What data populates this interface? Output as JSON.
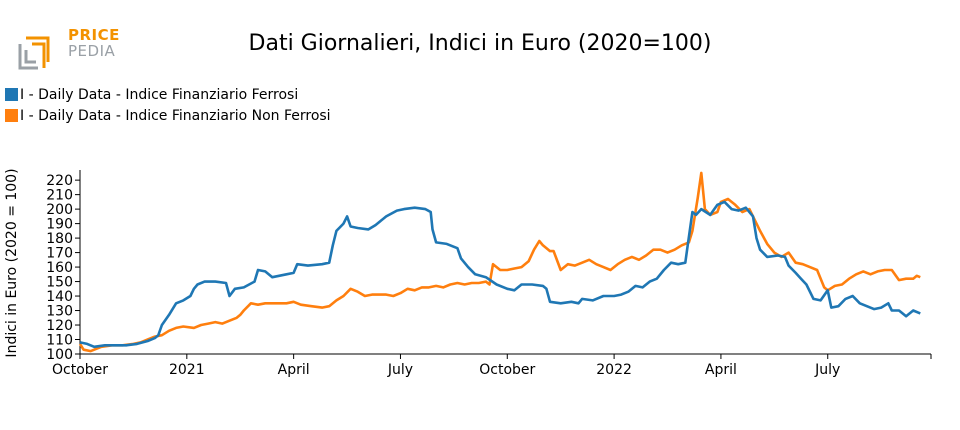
{
  "logo": {
    "line1": "PRICE",
    "line2": "PEDIA",
    "color_orange": "#f39200",
    "color_gray": "#9aa0a6"
  },
  "chart_data": {
    "type": "line",
    "title": "Dati Giornalieri, Indici in Euro (2020=100)",
    "xlabel": "",
    "ylabel": "Indici in Euro (2020 = 100)",
    "ylim": [
      100,
      227
    ],
    "yticks": [
      100,
      110,
      120,
      130,
      140,
      150,
      160,
      170,
      180,
      190,
      200,
      210,
      220
    ],
    "x_range_months": [
      0,
      23.9
    ],
    "xticks": [
      {
        "pos": 0,
        "label": "October"
      },
      {
        "pos": 3,
        "label": "2021"
      },
      {
        "pos": 6,
        "label": "April"
      },
      {
        "pos": 9,
        "label": "July"
      },
      {
        "pos": 12,
        "label": "October"
      },
      {
        "pos": 15,
        "label": "2022"
      },
      {
        "pos": 18,
        "label": "April"
      },
      {
        "pos": 21,
        "label": "July"
      }
    ],
    "grid": false,
    "legend_position": "top-left",
    "series": [
      {
        "name": "I - Daily Data - Indice Finanziario Ferrosi",
        "color": "#1f77b4",
        "points": [
          [
            0,
            108
          ],
          [
            0.2,
            107
          ],
          [
            0.4,
            105
          ],
          [
            0.7,
            106
          ],
          [
            1.0,
            106
          ],
          [
            1.3,
            106
          ],
          [
            1.6,
            107
          ],
          [
            1.9,
            109
          ],
          [
            2.1,
            111
          ],
          [
            2.2,
            113
          ],
          [
            2.3,
            120
          ],
          [
            2.5,
            127
          ],
          [
            2.7,
            135
          ],
          [
            2.9,
            137
          ],
          [
            3.1,
            140
          ],
          [
            3.2,
            145
          ],
          [
            3.3,
            148
          ],
          [
            3.5,
            150
          ],
          [
            3.8,
            150
          ],
          [
            4.1,
            149
          ],
          [
            4.2,
            140
          ],
          [
            4.35,
            145
          ],
          [
            4.6,
            146
          ],
          [
            4.9,
            150
          ],
          [
            5.0,
            158
          ],
          [
            5.2,
            157
          ],
          [
            5.4,
            153
          ],
          [
            5.8,
            155
          ],
          [
            6.0,
            156
          ],
          [
            6.1,
            162
          ],
          [
            6.4,
            161
          ],
          [
            6.8,
            162
          ],
          [
            7.0,
            163
          ],
          [
            7.1,
            175
          ],
          [
            7.2,
            185
          ],
          [
            7.4,
            190
          ],
          [
            7.5,
            195
          ],
          [
            7.6,
            188
          ],
          [
            7.8,
            187
          ],
          [
            8.1,
            186
          ],
          [
            8.3,
            189
          ],
          [
            8.6,
            195
          ],
          [
            8.9,
            199
          ],
          [
            9.1,
            200
          ],
          [
            9.4,
            201
          ],
          [
            9.7,
            200
          ],
          [
            9.85,
            198
          ],
          [
            9.9,
            186
          ],
          [
            10.0,
            177
          ],
          [
            10.3,
            176
          ],
          [
            10.6,
            173
          ],
          [
            10.7,
            166
          ],
          [
            10.9,
            160
          ],
          [
            11.1,
            155
          ],
          [
            11.4,
            153
          ],
          [
            11.7,
            148
          ],
          [
            12.0,
            145
          ],
          [
            12.2,
            144
          ],
          [
            12.4,
            148
          ],
          [
            12.7,
            148
          ],
          [
            13.0,
            147
          ],
          [
            13.1,
            145
          ],
          [
            13.2,
            136
          ],
          [
            13.5,
            135
          ],
          [
            13.8,
            136
          ],
          [
            14.0,
            135
          ],
          [
            14.1,
            138
          ],
          [
            14.4,
            137
          ],
          [
            14.7,
            140
          ],
          [
            15.0,
            140
          ],
          [
            15.2,
            141
          ],
          [
            15.4,
            143
          ],
          [
            15.6,
            147
          ],
          [
            15.8,
            146
          ],
          [
            16.0,
            150
          ],
          [
            16.2,
            152
          ],
          [
            16.4,
            158
          ],
          [
            16.6,
            163
          ],
          [
            16.8,
            162
          ],
          [
            17.0,
            163
          ],
          [
            17.05,
            172
          ],
          [
            17.2,
            198
          ],
          [
            17.3,
            196
          ],
          [
            17.45,
            200
          ],
          [
            17.7,
            196
          ],
          [
            17.9,
            203
          ],
          [
            18.1,
            205
          ],
          [
            18.3,
            200
          ],
          [
            18.5,
            199
          ],
          [
            18.7,
            201
          ],
          [
            18.9,
            195
          ],
          [
            19.0,
            180
          ],
          [
            19.1,
            172
          ],
          [
            19.3,
            167
          ],
          [
            19.6,
            168
          ],
          [
            19.8,
            167
          ],
          [
            19.9,
            161
          ],
          [
            20.1,
            156
          ],
          [
            20.25,
            152
          ],
          [
            20.4,
            148
          ],
          [
            20.6,
            138
          ],
          [
            20.8,
            137
          ],
          [
            21.0,
            144
          ],
          [
            21.1,
            132
          ],
          [
            21.3,
            133
          ],
          [
            21.5,
            138
          ],
          [
            21.7,
            140
          ],
          [
            21.9,
            135
          ],
          [
            22.1,
            133
          ],
          [
            22.3,
            131
          ],
          [
            22.5,
            132
          ],
          [
            22.7,
            135
          ],
          [
            22.8,
            130
          ],
          [
            23.0,
            130
          ],
          [
            23.2,
            126
          ],
          [
            23.4,
            130
          ],
          [
            23.6,
            128
          ]
        ]
      },
      {
        "name": "I - Daily Data - Indice Finanziario Non Ferrosi",
        "color": "#ff7f0e",
        "points": [
          [
            0,
            107
          ],
          [
            0.1,
            103
          ],
          [
            0.3,
            102
          ],
          [
            0.6,
            105
          ],
          [
            0.9,
            106
          ],
          [
            1.2,
            106
          ],
          [
            1.5,
            107
          ],
          [
            1.7,
            108
          ],
          [
            1.9,
            110
          ],
          [
            2.1,
            112
          ],
          [
            2.3,
            113
          ],
          [
            2.5,
            116
          ],
          [
            2.7,
            118
          ],
          [
            2.9,
            119
          ],
          [
            3.2,
            118
          ],
          [
            3.4,
            120
          ],
          [
            3.6,
            121
          ],
          [
            3.8,
            122
          ],
          [
            4.0,
            121
          ],
          [
            4.2,
            123
          ],
          [
            4.4,
            125
          ],
          [
            4.5,
            127
          ],
          [
            4.6,
            130
          ],
          [
            4.8,
            135
          ],
          [
            5.0,
            134
          ],
          [
            5.2,
            135
          ],
          [
            5.5,
            135
          ],
          [
            5.8,
            135
          ],
          [
            6.0,
            136
          ],
          [
            6.2,
            134
          ],
          [
            6.5,
            133
          ],
          [
            6.8,
            132
          ],
          [
            7.0,
            133
          ],
          [
            7.2,
            137
          ],
          [
            7.4,
            140
          ],
          [
            7.6,
            145
          ],
          [
            7.8,
            143
          ],
          [
            8.0,
            140
          ],
          [
            8.2,
            141
          ],
          [
            8.4,
            141
          ],
          [
            8.6,
            141
          ],
          [
            8.8,
            140
          ],
          [
            9.0,
            142
          ],
          [
            9.2,
            145
          ],
          [
            9.4,
            144
          ],
          [
            9.6,
            146
          ],
          [
            9.8,
            146
          ],
          [
            10.0,
            147
          ],
          [
            10.2,
            146
          ],
          [
            10.4,
            148
          ],
          [
            10.6,
            149
          ],
          [
            10.8,
            148
          ],
          [
            11.0,
            149
          ],
          [
            11.2,
            149
          ],
          [
            11.4,
            150
          ],
          [
            11.5,
            148
          ],
          [
            11.6,
            162
          ],
          [
            11.8,
            158
          ],
          [
            12.0,
            158
          ],
          [
            12.2,
            159
          ],
          [
            12.4,
            160
          ],
          [
            12.6,
            164
          ],
          [
            12.75,
            172
          ],
          [
            12.9,
            178
          ],
          [
            13.0,
            175
          ],
          [
            13.2,
            171
          ],
          [
            13.3,
            171
          ],
          [
            13.5,
            158
          ],
          [
            13.7,
            162
          ],
          [
            13.9,
            161
          ],
          [
            14.1,
            163
          ],
          [
            14.3,
            165
          ],
          [
            14.5,
            162
          ],
          [
            14.7,
            160
          ],
          [
            14.9,
            158
          ],
          [
            15.1,
            162
          ],
          [
            15.3,
            165
          ],
          [
            15.5,
            167
          ],
          [
            15.7,
            165
          ],
          [
            15.9,
            168
          ],
          [
            16.1,
            172
          ],
          [
            16.3,
            172
          ],
          [
            16.5,
            170
          ],
          [
            16.7,
            172
          ],
          [
            16.9,
            175
          ],
          [
            17.1,
            177
          ],
          [
            17.2,
            185
          ],
          [
            17.35,
            208
          ],
          [
            17.45,
            225
          ],
          [
            17.55,
            200
          ],
          [
            17.7,
            196
          ],
          [
            17.9,
            198
          ],
          [
            18.0,
            205
          ],
          [
            18.2,
            207
          ],
          [
            18.4,
            203
          ],
          [
            18.6,
            198
          ],
          [
            18.8,
            200
          ],
          [
            19.0,
            190
          ],
          [
            19.1,
            185
          ],
          [
            19.3,
            176
          ],
          [
            19.5,
            170
          ],
          [
            19.7,
            167
          ],
          [
            19.9,
            170
          ],
          [
            20.1,
            163
          ],
          [
            20.3,
            162
          ],
          [
            20.5,
            160
          ],
          [
            20.7,
            158
          ],
          [
            20.9,
            146
          ],
          [
            21.0,
            144
          ],
          [
            21.2,
            147
          ],
          [
            21.4,
            148
          ],
          [
            21.6,
            152
          ],
          [
            21.8,
            155
          ],
          [
            22.0,
            157
          ],
          [
            22.2,
            155
          ],
          [
            22.4,
            157
          ],
          [
            22.6,
            158
          ],
          [
            22.8,
            158
          ],
          [
            23.0,
            151
          ],
          [
            23.2,
            152
          ],
          [
            23.4,
            152
          ],
          [
            23.5,
            154
          ],
          [
            23.6,
            153
          ]
        ]
      }
    ]
  }
}
